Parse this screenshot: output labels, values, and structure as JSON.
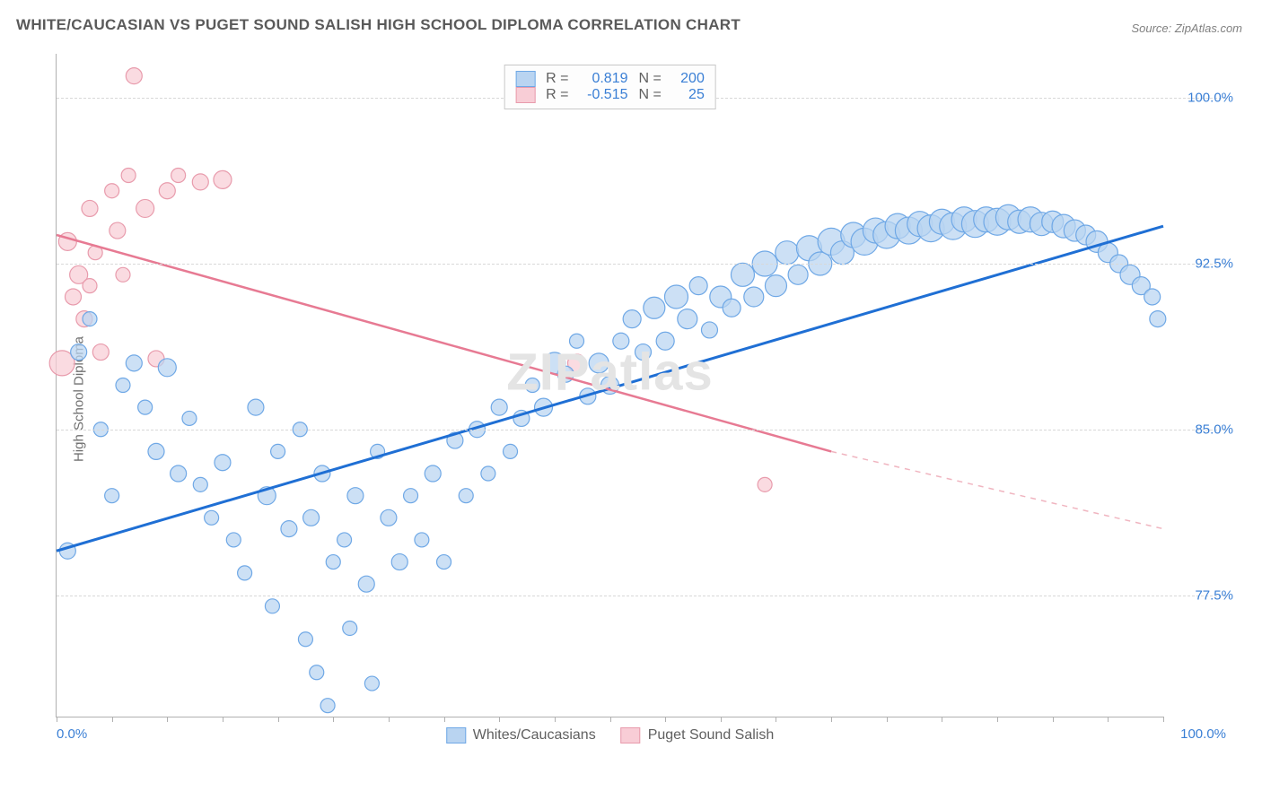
{
  "title": "WHITE/CAUCASIAN VS PUGET SOUND SALISH HIGH SCHOOL DIPLOMA CORRELATION CHART",
  "source": "Source: ZipAtlas.com",
  "yAxisLabel": "High School Diploma",
  "watermark": "ZIPatlas",
  "chart": {
    "type": "scatter",
    "xlim": [
      0,
      100
    ],
    "ylim": [
      72,
      102
    ],
    "yticks": [
      77.5,
      85.0,
      92.5,
      100.0
    ],
    "ytick_labels": [
      "77.5%",
      "85.0%",
      "92.5%",
      "100.0%"
    ],
    "xticks": [
      0,
      100
    ],
    "xtick_labels": [
      "0.0%",
      "100.0%"
    ],
    "x_minor_step": 5,
    "background_color": "#ffffff",
    "grid_color": "#d8d8d8",
    "axis_color": "#b0b0b0",
    "tick_color": "#3a7fd5",
    "marker_radius_min": 7,
    "marker_radius_max": 15,
    "series_blue": {
      "name": "Whites/Caucasians",
      "fill": "#b9d4f1",
      "stroke": "#6fa8e6",
      "opacity": 0.72,
      "R": "0.819",
      "N": "200",
      "regression": {
        "x1": 0,
        "y1": 79.5,
        "x2": 100,
        "y2": 94.2,
        "color": "#1f6fd4",
        "width": 3
      },
      "points": [
        [
          1,
          79.5,
          9
        ],
        [
          2,
          88.5,
          9
        ],
        [
          3,
          90,
          8
        ],
        [
          4,
          85,
          8
        ],
        [
          5,
          82,
          8
        ],
        [
          6,
          87,
          8
        ],
        [
          7,
          88,
          9
        ],
        [
          8,
          86,
          8
        ],
        [
          9,
          84,
          9
        ],
        [
          10,
          87.8,
          10
        ],
        [
          11,
          83,
          9
        ],
        [
          12,
          85.5,
          8
        ],
        [
          13,
          82.5,
          8
        ],
        [
          14,
          81,
          8
        ],
        [
          15,
          83.5,
          9
        ],
        [
          16,
          80,
          8
        ],
        [
          17,
          78.5,
          8
        ],
        [
          18,
          86,
          9
        ],
        [
          19,
          82,
          10
        ],
        [
          19.5,
          77,
          8
        ],
        [
          20,
          84,
          8
        ],
        [
          21,
          80.5,
          9
        ],
        [
          22,
          85,
          8
        ],
        [
          22.5,
          75.5,
          8
        ],
        [
          23,
          81,
          9
        ],
        [
          23.5,
          74,
          8
        ],
        [
          24,
          83,
          9
        ],
        [
          24.5,
          72.5,
          8
        ],
        [
          25,
          79,
          8
        ],
        [
          26,
          80,
          8
        ],
        [
          26.5,
          76,
          8
        ],
        [
          27,
          82,
          9
        ],
        [
          28,
          78,
          9
        ],
        [
          28.5,
          73.5,
          8
        ],
        [
          29,
          84,
          8
        ],
        [
          30,
          81,
          9
        ],
        [
          31,
          79,
          9
        ],
        [
          32,
          82,
          8
        ],
        [
          33,
          80,
          8
        ],
        [
          34,
          83,
          9
        ],
        [
          35,
          79,
          8
        ],
        [
          36,
          84.5,
          9
        ],
        [
          37,
          82,
          8
        ],
        [
          38,
          85,
          9
        ],
        [
          39,
          83,
          8
        ],
        [
          40,
          86,
          9
        ],
        [
          41,
          84,
          8
        ],
        [
          42,
          85.5,
          9
        ],
        [
          43,
          87,
          8
        ],
        [
          44,
          86,
          10
        ],
        [
          45,
          88,
          12
        ],
        [
          46,
          87.5,
          9
        ],
        [
          47,
          89,
          8
        ],
        [
          48,
          86.5,
          9
        ],
        [
          49,
          88,
          11
        ],
        [
          50,
          87,
          10
        ],
        [
          51,
          89,
          9
        ],
        [
          52,
          90,
          10
        ],
        [
          53,
          88.5,
          9
        ],
        [
          54,
          90.5,
          12
        ],
        [
          55,
          89,
          10
        ],
        [
          56,
          91,
          13
        ],
        [
          57,
          90,
          11
        ],
        [
          58,
          91.5,
          10
        ],
        [
          59,
          89.5,
          9
        ],
        [
          60,
          91,
          12
        ],
        [
          61,
          90.5,
          10
        ],
        [
          62,
          92,
          13
        ],
        [
          63,
          91,
          11
        ],
        [
          64,
          92.5,
          14
        ],
        [
          65,
          91.5,
          12
        ],
        [
          66,
          93,
          13
        ],
        [
          67,
          92,
          11
        ],
        [
          68,
          93.2,
          14
        ],
        [
          69,
          92.5,
          13
        ],
        [
          70,
          93.5,
          15
        ],
        [
          71,
          93,
          13
        ],
        [
          72,
          93.8,
          14
        ],
        [
          73,
          93.5,
          15
        ],
        [
          74,
          94,
          14
        ],
        [
          75,
          93.8,
          15
        ],
        [
          76,
          94.2,
          14
        ],
        [
          77,
          94,
          15
        ],
        [
          78,
          94.3,
          14
        ],
        [
          79,
          94.1,
          15
        ],
        [
          80,
          94.4,
          14
        ],
        [
          81,
          94.2,
          15
        ],
        [
          82,
          94.5,
          14
        ],
        [
          83,
          94.3,
          15
        ],
        [
          84,
          94.5,
          14
        ],
        [
          85,
          94.4,
          15
        ],
        [
          86,
          94.6,
          14
        ],
        [
          87,
          94.4,
          13
        ],
        [
          88,
          94.5,
          14
        ],
        [
          89,
          94.3,
          13
        ],
        [
          90,
          94.4,
          12
        ],
        [
          91,
          94.2,
          13
        ],
        [
          92,
          94,
          12
        ],
        [
          93,
          93.8,
          11
        ],
        [
          94,
          93.5,
          12
        ],
        [
          95,
          93,
          11
        ],
        [
          96,
          92.5,
          10
        ],
        [
          97,
          92,
          11
        ],
        [
          98,
          91.5,
          10
        ],
        [
          99,
          91,
          9
        ],
        [
          99.5,
          90,
          9
        ]
      ]
    },
    "series_pink": {
      "name": "Puget Sound Salish",
      "fill": "#f8cdd6",
      "stroke": "#e89bac",
      "opacity": 0.72,
      "R": "-0.515",
      "N": "25",
      "regression_solid": {
        "x1": 0,
        "y1": 93.8,
        "x2": 70,
        "y2": 84,
        "color": "#e77a93",
        "width": 2.5
      },
      "regression_dashed": {
        "x1": 70,
        "y1": 84,
        "x2": 100,
        "y2": 80.5,
        "color": "#f0b5c0",
        "width": 1.5,
        "dash": "6,6"
      },
      "points": [
        [
          0.5,
          88,
          14
        ],
        [
          1,
          93.5,
          10
        ],
        [
          1.5,
          91,
          9
        ],
        [
          2,
          92,
          10
        ],
        [
          2.5,
          90,
          9
        ],
        [
          3,
          91.5,
          8
        ],
        [
          3,
          95,
          9
        ],
        [
          3.5,
          93,
          8
        ],
        [
          4,
          88.5,
          9
        ],
        [
          5,
          95.8,
          8
        ],
        [
          5.5,
          94,
          9
        ],
        [
          6,
          92,
          8
        ],
        [
          6.5,
          96.5,
          8
        ],
        [
          7,
          101,
          9
        ],
        [
          8,
          95,
          10
        ],
        [
          9,
          88.2,
          9
        ],
        [
          10,
          95.8,
          9
        ],
        [
          11,
          96.5,
          8
        ],
        [
          13,
          96.2,
          9
        ],
        [
          15,
          96.3,
          10
        ],
        [
          47,
          88,
          10
        ],
        [
          64,
          82.5,
          8
        ]
      ]
    }
  },
  "topLegend": {
    "rows": [
      {
        "swatch": "blue",
        "R_label": "R =",
        "R_val": "0.819",
        "N_label": "N =",
        "N_val": "200"
      },
      {
        "swatch": "pink",
        "R_label": "R =",
        "R_val": "-0.515",
        "N_label": "N =",
        "N_val": "25"
      }
    ]
  },
  "bottomLegend": [
    {
      "swatch": "blue",
      "label": "Whites/Caucasians"
    },
    {
      "swatch": "pink",
      "label": "Puget Sound Salish"
    }
  ]
}
